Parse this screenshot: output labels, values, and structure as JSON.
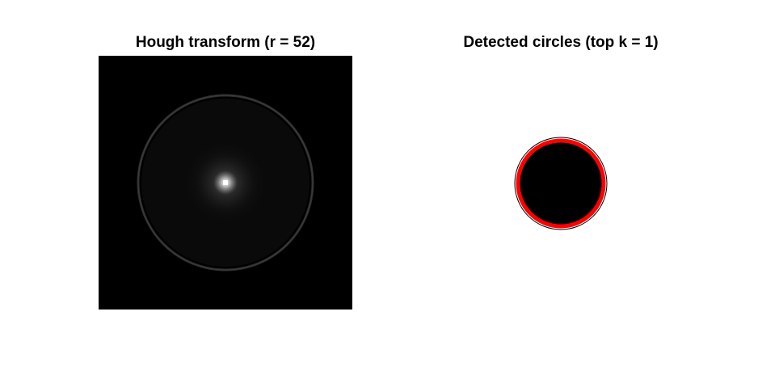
{
  "figure": {
    "panels": [
      {
        "title": "Hough transform (r = 52)",
        "image": "hough-accumulator-grayscale",
        "background_color": "#000000"
      },
      {
        "title": "Detected circles (top k = 1)",
        "image": "detected-circle-overlay",
        "circle_fill": "#000000",
        "circle_outline_color": "#ff0000"
      }
    ]
  }
}
